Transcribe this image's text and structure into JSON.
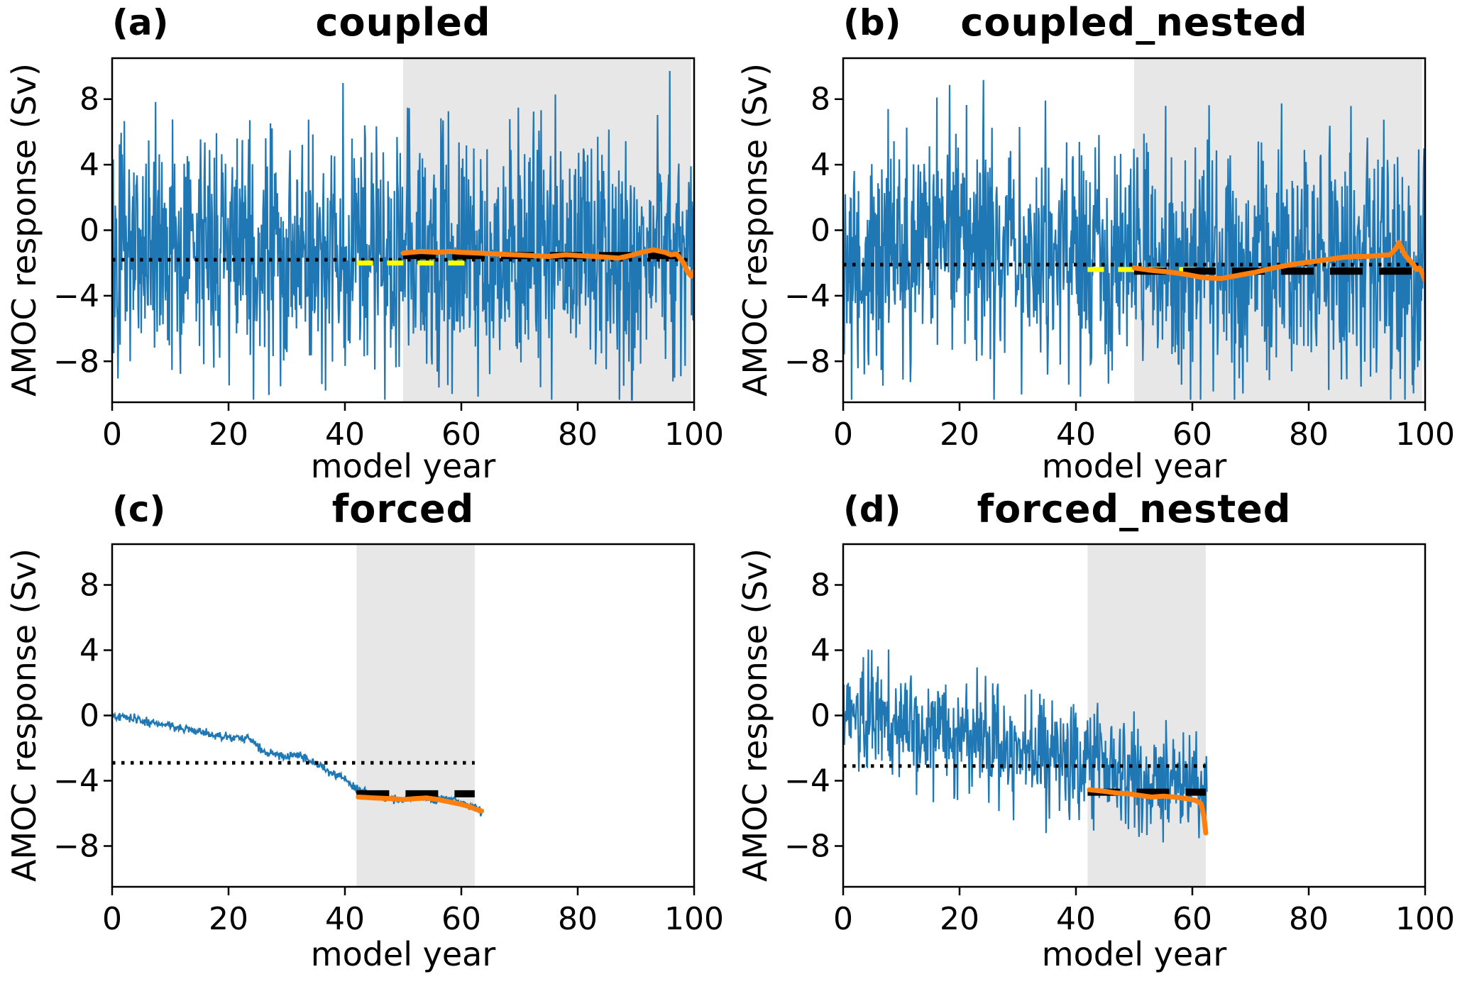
{
  "figure": {
    "background": "#ffffff",
    "description": "Four-panel time-series figure of AMOC response for coupled, coupled_nested, forced and forced_nested experiments"
  },
  "colors": {
    "blue_series": "#1f77b4",
    "orange_line": "#ff7f0e",
    "yellow_dashed": "#ffff00",
    "black": "#000000",
    "shaded_region": "#e7e7e7"
  },
  "axis": {
    "xlabel": "model year",
    "ylabel": "AMOC response (Sv)",
    "xticks": [
      0,
      20,
      40,
      60,
      80,
      100
    ],
    "yticks": [
      -8,
      -4,
      0,
      4,
      8
    ],
    "xlim": [
      0,
      100
    ],
    "ylim": [
      -10.5,
      10.5
    ]
  },
  "chart_data": [
    {
      "id": "a",
      "label": "(a)",
      "title": "coupled",
      "type": "line",
      "xlabel": "model year",
      "ylabel": "AMOC response (Sv)",
      "xlim": [
        0,
        100
      ],
      "ylim": [
        -10.5,
        10.5
      ],
      "xticks": [
        0,
        20,
        40,
        60,
        80,
        100
      ],
      "yticks": [
        -8,
        -4,
        0,
        4,
        8
      ],
      "shaded_region": {
        "x0": 50,
        "x1": 99.5
      },
      "reference_dotted": {
        "y": -1.8,
        "x0": 0,
        "x1": 100
      },
      "yellow_dashed": {
        "y": -2.0,
        "x0": 42,
        "x1": 62.3
      },
      "black_dashed": {
        "y": -1.55,
        "x0": 50,
        "x1": 100
      },
      "orange_line": {
        "x": [
          50,
          53,
          56,
          58,
          60,
          63,
          66,
          69,
          72,
          75,
          78,
          80,
          83,
          85,
          87,
          89,
          91,
          93,
          95,
          96,
          97,
          98,
          99,
          99.5,
          100
        ],
        "y": [
          -1.4,
          -1.3,
          -1.35,
          -1.3,
          -1.35,
          -1.4,
          -1.45,
          -1.5,
          -1.55,
          -1.6,
          -1.5,
          -1.55,
          -1.6,
          -1.65,
          -1.7,
          -1.55,
          -1.35,
          -1.2,
          -1.35,
          -1.5,
          -1.45,
          -1.9,
          -2.6,
          -2.8,
          -2.5
        ]
      },
      "blue_series": {
        "kind": "noisy",
        "x_range": [
          0,
          100
        ],
        "n": 1100,
        "mean_keypoints": [
          [
            0,
            -0.8
          ],
          [
            40,
            -1.0
          ],
          [
            60,
            -1.3
          ],
          [
            100,
            -1.5
          ]
        ],
        "sigma": 3.7,
        "clamp": [
          -10.35,
          10.35
        ],
        "seed": 101
      }
    },
    {
      "id": "b",
      "label": "(b)",
      "title": "coupled_nested",
      "type": "line",
      "xlabel": "model year",
      "ylabel": "AMOC response (Sv)",
      "xlim": [
        0,
        100
      ],
      "ylim": [
        -10.5,
        10.5
      ],
      "xticks": [
        0,
        20,
        40,
        60,
        80,
        100
      ],
      "yticks": [
        -8,
        -4,
        0,
        4,
        8
      ],
      "shaded_region": {
        "x0": 50,
        "x1": 99.5
      },
      "reference_dotted": {
        "y": -2.1,
        "x0": 0,
        "x1": 100
      },
      "yellow_dashed": {
        "y": -2.4,
        "x0": 42,
        "x1": 62.3
      },
      "black_dashed": {
        "y": -2.5,
        "x0": 50,
        "x1": 100
      },
      "orange_line": {
        "x": [
          50,
          53,
          56,
          59,
          62,
          65,
          68,
          71,
          74,
          77,
          80,
          83,
          86,
          88,
          90,
          92,
          94,
          95,
          95.5,
          96.5,
          97.5,
          98,
          98.5,
          99,
          99.5,
          100
        ],
        "y": [
          -2.3,
          -2.45,
          -2.55,
          -2.7,
          -2.9,
          -2.95,
          -2.75,
          -2.55,
          -2.3,
          -2.1,
          -1.95,
          -1.8,
          -1.65,
          -1.6,
          -1.6,
          -1.55,
          -1.5,
          -1.1,
          -0.75,
          -1.5,
          -1.9,
          -2.1,
          -2.4,
          -2.3,
          -2.6,
          -3.1
        ]
      },
      "blue_series": {
        "kind": "noisy",
        "x_range": [
          0,
          100
        ],
        "n": 1100,
        "mean_keypoints": [
          [
            0,
            -1.0
          ],
          [
            40,
            -1.3
          ],
          [
            70,
            -1.8
          ],
          [
            100,
            -2.0
          ]
        ],
        "sigma": 3.7,
        "clamp": [
          -10.35,
          10.35
        ],
        "seed": 202
      }
    },
    {
      "id": "c",
      "label": "(c)",
      "title": "forced",
      "type": "line",
      "xlabel": "model year",
      "ylabel": "AMOC response (Sv)",
      "xlim": [
        0,
        100
      ],
      "ylim": [
        -10.5,
        10.5
      ],
      "xticks": [
        0,
        20,
        40,
        60,
        80,
        100
      ],
      "yticks": [
        -8,
        -4,
        0,
        4,
        8
      ],
      "shaded_region": {
        "x0": 42,
        "x1": 62.3
      },
      "reference_dotted": {
        "y": -2.9,
        "x0": 0,
        "x1": 62.3
      },
      "yellow_dashed": null,
      "black_dashed": {
        "y": -4.8,
        "x0": 42,
        "x1": 62.3
      },
      "orange_line": {
        "x": [
          42.3,
          45,
          48,
          50,
          52,
          54,
          56,
          58,
          60,
          61.5,
          62.5,
          63.5
        ],
        "y": [
          -5.0,
          -5.05,
          -5.1,
          -5.15,
          -5.1,
          -5.05,
          -5.15,
          -5.3,
          -5.45,
          -5.6,
          -5.75,
          -5.85
        ]
      },
      "blue_series": {
        "kind": "noisy",
        "x_range": [
          0,
          63.5
        ],
        "n": 700,
        "mean_keypoints": [
          [
            0,
            0
          ],
          [
            3,
            -0.15
          ],
          [
            6,
            -0.4
          ],
          [
            9,
            -0.5
          ],
          [
            12,
            -0.8
          ],
          [
            15,
            -1.0
          ],
          [
            18,
            -1.25
          ],
          [
            21,
            -1.35
          ],
          [
            24,
            -1.5
          ],
          [
            26,
            -2.2
          ],
          [
            28,
            -2.4
          ],
          [
            30,
            -2.5
          ],
          [
            32,
            -2.35
          ],
          [
            34,
            -2.8
          ],
          [
            36,
            -3.1
          ],
          [
            38,
            -3.6
          ],
          [
            40,
            -3.9
          ],
          [
            42,
            -4.5
          ],
          [
            44,
            -4.9
          ],
          [
            46,
            -5.0
          ],
          [
            48,
            -5.1
          ],
          [
            50,
            -5.25
          ],
          [
            52,
            -5.0
          ],
          [
            53,
            -4.85
          ],
          [
            55,
            -5.2
          ],
          [
            57,
            -5.05
          ],
          [
            59,
            -5.2
          ],
          [
            61,
            -5.45
          ],
          [
            62.5,
            -5.6
          ],
          [
            63.5,
            -5.95
          ]
        ],
        "sigma": 0.13,
        "clamp": [
          -10.35,
          10.35
        ],
        "seed": 303
      }
    },
    {
      "id": "d",
      "label": "(d)",
      "title": "forced_nested",
      "type": "line",
      "xlabel": "model year",
      "ylabel": "AMOC response (Sv)",
      "xlim": [
        0,
        100
      ],
      "ylim": [
        -10.5,
        10.5
      ],
      "xticks": [
        0,
        20,
        40,
        60,
        80,
        100
      ],
      "yticks": [
        -8,
        -4,
        0,
        4,
        8
      ],
      "shaded_region": {
        "x0": 42,
        "x1": 62.3
      },
      "reference_dotted": {
        "y": -3.1,
        "x0": 0,
        "x1": 62.3
      },
      "yellow_dashed": null,
      "black_dashed": {
        "y": -4.7,
        "x0": 42,
        "x1": 62.3
      },
      "orange_line": {
        "x": [
          42.3,
          45,
          47,
          49,
          51,
          53,
          55,
          57,
          59,
          60.5,
          61.5,
          62,
          62.3
        ],
        "y": [
          -4.55,
          -4.65,
          -4.75,
          -4.8,
          -4.9,
          -5.0,
          -4.95,
          -5.0,
          -5.1,
          -5.2,
          -5.4,
          -6.2,
          -7.2
        ]
      },
      "blue_series": {
        "kind": "noisy",
        "x_range": [
          0,
          62.5
        ],
        "n": 650,
        "mean_keypoints": [
          [
            0,
            0.2
          ],
          [
            8,
            -0.4
          ],
          [
            15,
            -0.9
          ],
          [
            22,
            -1.4
          ],
          [
            30,
            -2.1
          ],
          [
            38,
            -2.7
          ],
          [
            45,
            -3.3
          ],
          [
            52,
            -3.7
          ],
          [
            58,
            -4.0
          ],
          [
            62.5,
            -4.3
          ]
        ],
        "sigma": 1.7,
        "clamp": [
          -9.95,
          9.95
        ],
        "seed": 404
      }
    }
  ]
}
